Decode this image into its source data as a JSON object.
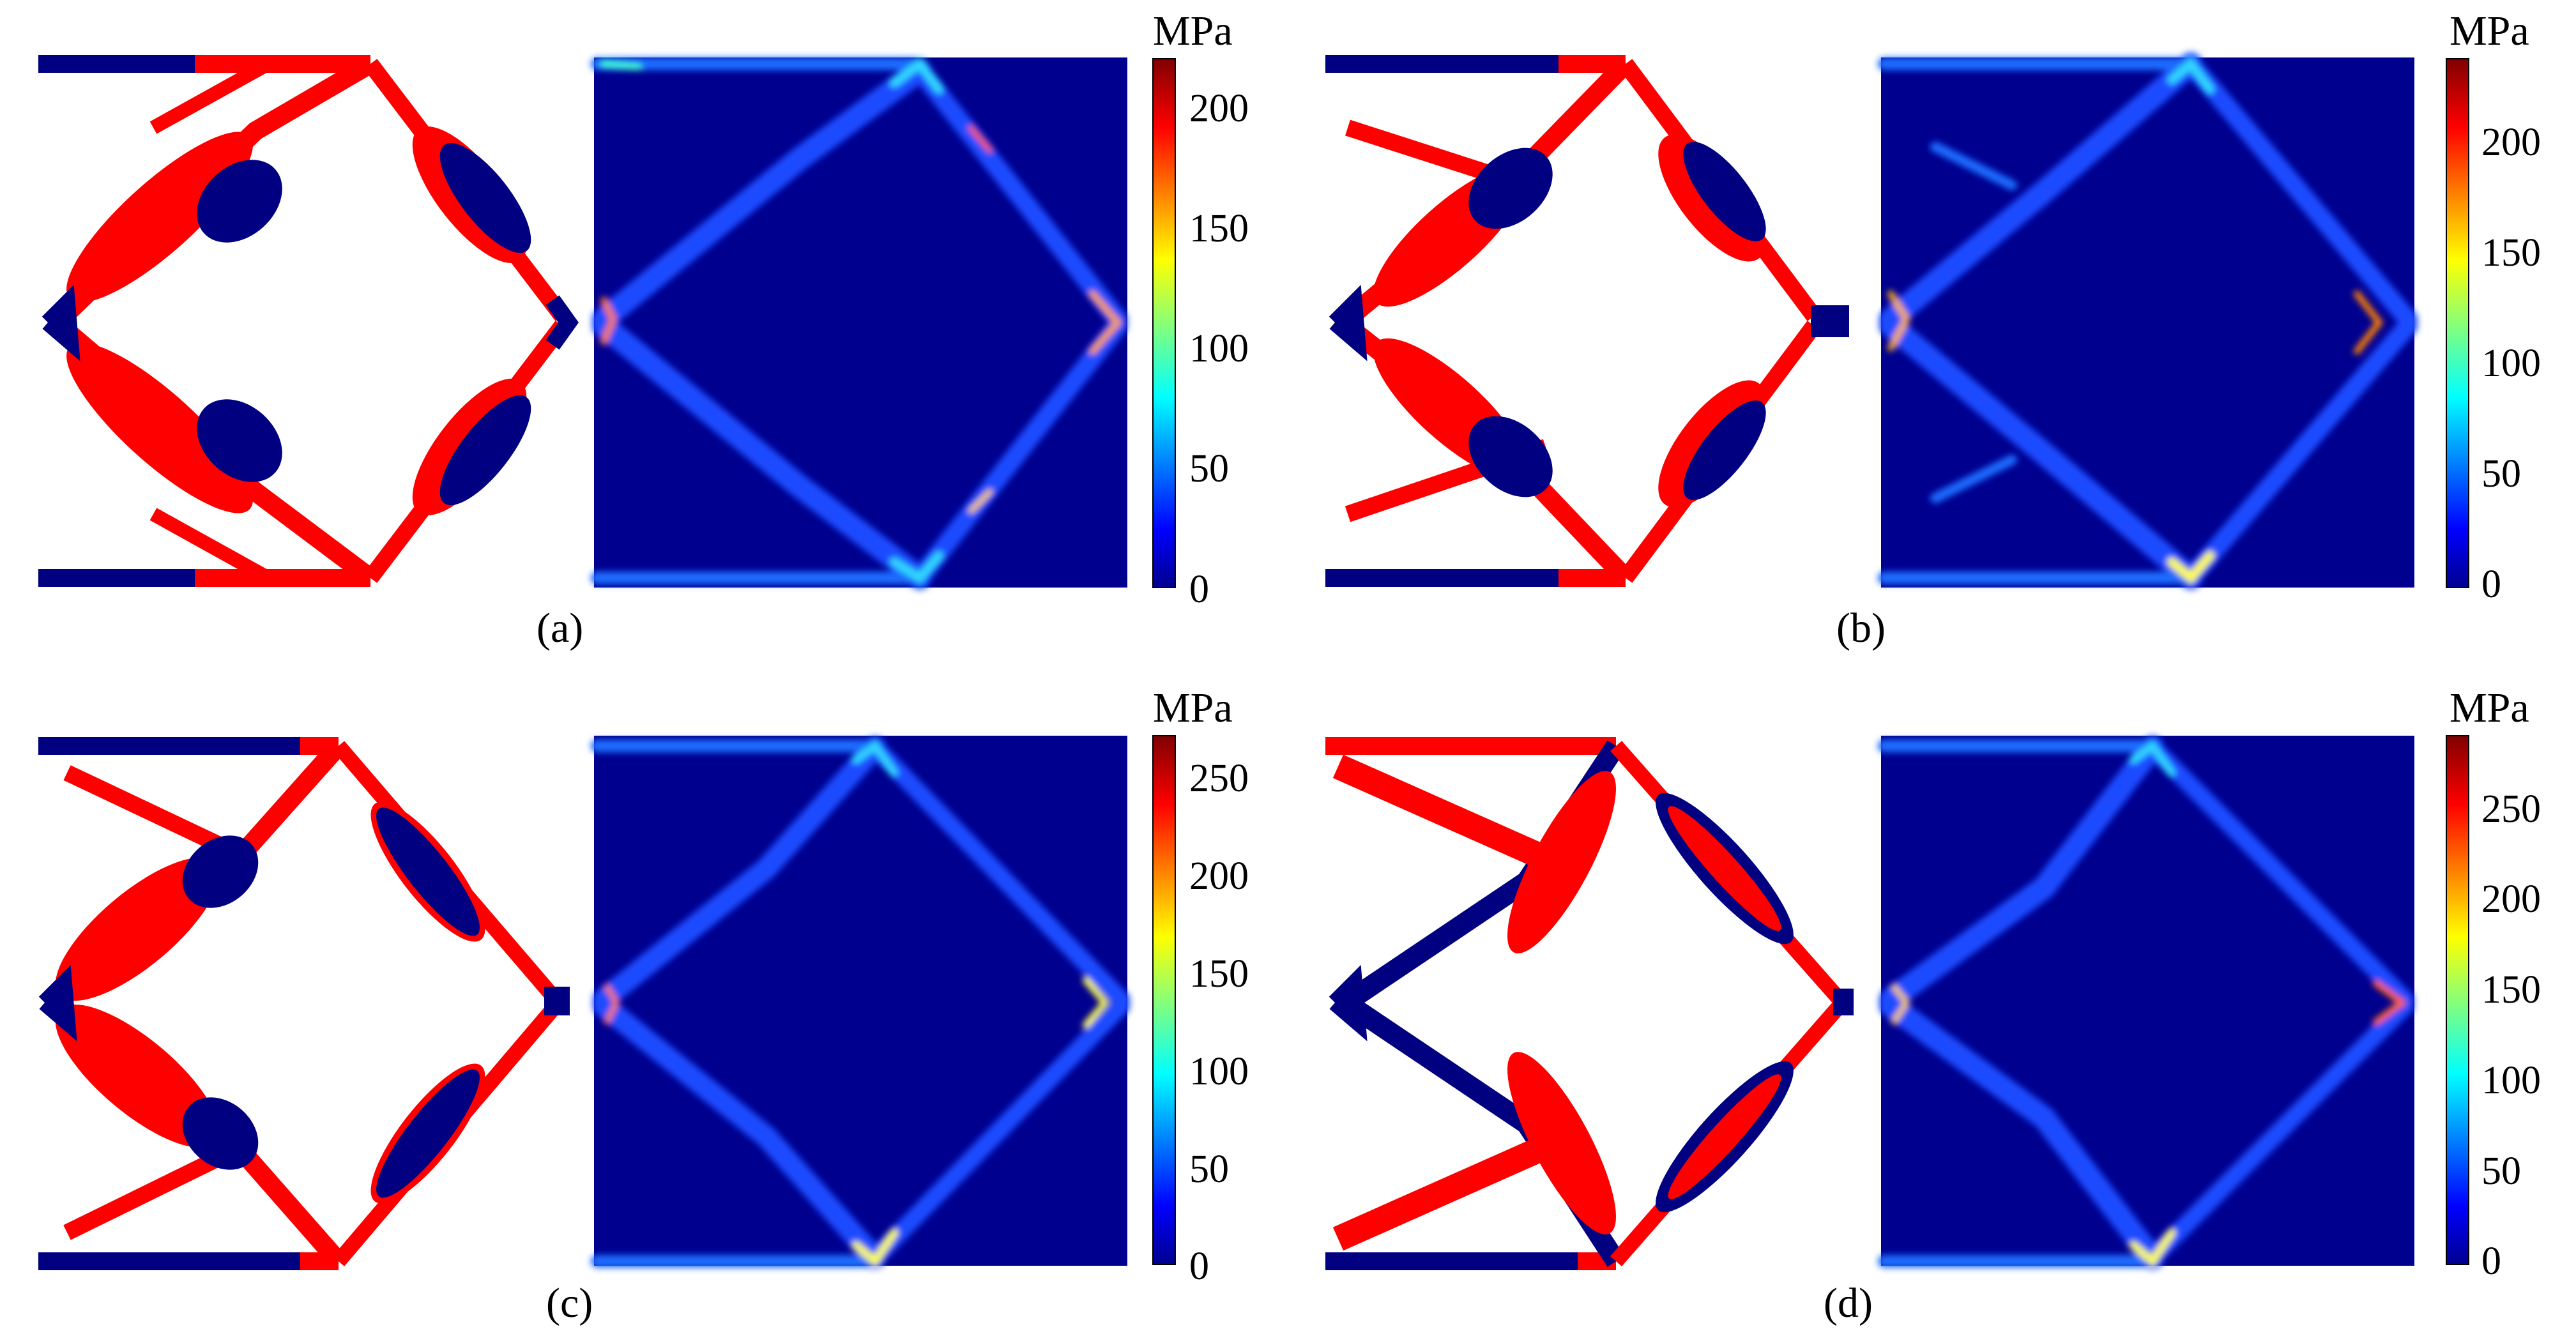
{
  "figure": {
    "panels": [
      {
        "caption": "(a)",
        "colorbar": {
          "unit": "MPa",
          "max": 220,
          "ticks": [
            "0",
            "50",
            "100",
            "150",
            "200"
          ]
        },
        "colors": {
          "phase_a": "#ff0000",
          "phase_b": "#000080",
          "stress_background": "#00008f"
        }
      },
      {
        "caption": "(b)",
        "colorbar": {
          "unit": "MPa",
          "max": 240,
          "ticks": [
            "0",
            "50",
            "100",
            "150",
            "200"
          ]
        },
        "colors": {
          "phase_a": "#ff0000",
          "phase_b": "#000080",
          "stress_background": "#00008f"
        }
      },
      {
        "caption": "(c)",
        "colorbar": {
          "unit": "MPa",
          "max": 270,
          "ticks": [
            "0",
            "50",
            "100",
            "150",
            "200",
            "250"
          ]
        },
        "colors": {
          "phase_a": "#ff0000",
          "phase_b": "#000080",
          "stress_background": "#00008f"
        }
      },
      {
        "caption": "(d)",
        "colorbar": {
          "unit": "MPa",
          "max": 295,
          "ticks": [
            "0",
            "50",
            "100",
            "150",
            "200",
            "250"
          ]
        },
        "colors": {
          "phase_a": "#ff0000",
          "phase_b": "#000080",
          "stress_background": "#00008f"
        }
      }
    ],
    "colormap": "jet"
  }
}
